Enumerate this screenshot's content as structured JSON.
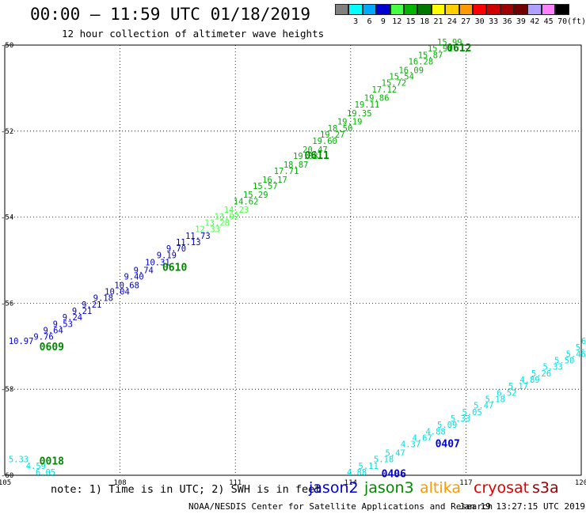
{
  "header": {
    "title": "00:00 – 11:59 UTC 01/18/2019",
    "subtitle": "12 hour collection of altimeter wave heights"
  },
  "legend": {
    "unit": "(ft)",
    "bins": [
      {
        "label": "",
        "color": "#808080"
      },
      {
        "label": "3",
        "color": "#00ffff"
      },
      {
        "label": "6",
        "color": "#00a8ff"
      },
      {
        "label": "9",
        "color": "#0000d0"
      },
      {
        "label": "12",
        "color": "#44ff44"
      },
      {
        "label": "15",
        "color": "#00b400"
      },
      {
        "label": "18",
        "color": "#007800"
      },
      {
        "label": "21",
        "color": "#ffff00"
      },
      {
        "label": "24",
        "color": "#ffd000"
      },
      {
        "label": "27",
        "color": "#ff9900"
      },
      {
        "label": "30",
        "color": "#ff0000"
      },
      {
        "label": "33",
        "color": "#d00000"
      },
      {
        "label": "36",
        "color": "#a00000"
      },
      {
        "label": "39",
        "color": "#700000"
      },
      {
        "label": "42",
        "color": "#b0a0ff"
      },
      {
        "label": "45",
        "color": "#ff80ff"
      },
      {
        "label": "70",
        "color": "#000000"
      }
    ]
  },
  "footer": {
    "note": "note: 1) Time is in UTC; 2) SWH is in feet",
    "missions": [
      {
        "label": "jason2",
        "color": "#0000cc"
      },
      {
        "label": "jason3",
        "color": "#008800"
      },
      {
        "label": "altika",
        "color": "#ff9900"
      },
      {
        "label": "cryosat",
        "color": "#dd0000"
      },
      {
        "label": "s3a",
        "color": "#990000"
      }
    ],
    "credit": "NOAA/NESDIS Center for Satellite Applications and Research",
    "timestamp": "Jan 19 13:27:15 UTC 2019"
  },
  "chart_data": {
    "type": "scatter",
    "xlim": [
      105,
      120
    ],
    "ylim": [
      -60,
      -50
    ],
    "xticks": [
      "105",
      "108",
      "111",
      "114",
      "117",
      "120"
    ],
    "yticks": [
      "-50",
      "-52",
      "-54",
      "-56",
      "-58",
      "-60"
    ],
    "grid": true,
    "series": [
      {
        "color": "#0000cc",
        "points": [
          {
            "x": 105.1,
            "y": -56.95,
            "label": "10.97"
          },
          {
            "x": 105.75,
            "y": -56.85,
            "label": "9.76"
          },
          {
            "x": 106.0,
            "y": -56.7,
            "label": "9.64"
          },
          {
            "x": 106.25,
            "y": -56.55,
            "label": "9.53"
          },
          {
            "x": 106.5,
            "y": -56.4,
            "label": "9.24"
          },
          {
            "x": 106.75,
            "y": -56.25,
            "label": "9.21"
          },
          {
            "x": 107.0,
            "y": -56.1,
            "label": "9.21"
          },
          {
            "x": 107.3,
            "y": -55.95,
            "label": "9.18"
          },
          {
            "x": 107.6,
            "y": -55.8,
            "label": "10.04"
          },
          {
            "x": 107.85,
            "y": -55.65,
            "label": "10.68"
          },
          {
            "x": 108.1,
            "y": -55.45,
            "label": "9.40"
          },
          {
            "x": 108.35,
            "y": -55.3,
            "label": "9.74"
          },
          {
            "x": 108.65,
            "y": -55.12,
            "label": "10.31"
          },
          {
            "x": 108.95,
            "y": -54.95,
            "label": "9.19"
          },
          {
            "x": 109.2,
            "y": -54.8,
            "label": "9.70"
          },
          {
            "x": 109.45,
            "y": -54.65,
            "label": "11.13"
          },
          {
            "x": 109.7,
            "y": -54.5,
            "label": "11.73"
          }
        ]
      },
      {
        "color": "#44ff44",
        "points": [
          {
            "x": 109.95,
            "y": -54.35,
            "label": "12.33"
          },
          {
            "x": 110.2,
            "y": -54.2,
            "label": "13.28"
          },
          {
            "x": 110.45,
            "y": -54.05,
            "label": "13.92"
          },
          {
            "x": 110.7,
            "y": -53.9,
            "label": "14.23"
          }
        ]
      },
      {
        "color": "#00b400",
        "points": [
          {
            "x": 110.95,
            "y": -53.7,
            "label": "14.62"
          },
          {
            "x": 111.2,
            "y": -53.55,
            "label": "15.29"
          },
          {
            "x": 111.45,
            "y": -53.35,
            "label": "15.57"
          },
          {
            "x": 111.7,
            "y": -53.2,
            "label": "16.17"
          },
          {
            "x": 112.0,
            "y": -53.0,
            "label": "17.71"
          },
          {
            "x": 112.25,
            "y": -52.85,
            "label": "18.87"
          },
          {
            "x": 112.5,
            "y": -52.65,
            "label": "19.08"
          },
          {
            "x": 112.75,
            "y": -52.5,
            "label": "20.47"
          },
          {
            "x": 113.0,
            "y": -52.3,
            "label": "19.60"
          },
          {
            "x": 113.2,
            "y": -52.15,
            "label": "19.27"
          },
          {
            "x": 113.4,
            "y": -52.0,
            "label": "18.50"
          },
          {
            "x": 113.65,
            "y": -51.85,
            "label": "19.19"
          },
          {
            "x": 113.9,
            "y": -51.65,
            "label": "19.35"
          },
          {
            "x": 114.1,
            "y": -51.45,
            "label": "19.11"
          },
          {
            "x": 114.35,
            "y": -51.3,
            "label": "19.86"
          },
          {
            "x": 114.55,
            "y": -51.1,
            "label": "17.12"
          },
          {
            "x": 114.8,
            "y": -50.95,
            "label": "15.72"
          },
          {
            "x": 115.0,
            "y": -50.8,
            "label": "15.54"
          },
          {
            "x": 115.25,
            "y": -50.65,
            "label": "16.09"
          },
          {
            "x": 115.5,
            "y": -50.45,
            "label": "16.28"
          },
          {
            "x": 115.75,
            "y": -50.3,
            "label": "15.87"
          },
          {
            "x": 116.0,
            "y": -50.15,
            "label": "15.91"
          },
          {
            "x": 116.25,
            "y": -50.0,
            "label": "15.99"
          }
        ]
      },
      {
        "color": "#00e0e0",
        "points": [
          {
            "x": 105.1,
            "y": -59.7,
            "label": "5.33"
          },
          {
            "x": 105.55,
            "y": -59.85,
            "label": "4.59"
          },
          {
            "x": 105.8,
            "y": -60.0,
            "label": "6.05"
          }
        ]
      },
      {
        "color": "#00e0e0",
        "points": [
          {
            "x": 113.9,
            "y": -60.0,
            "label": "4.88"
          },
          {
            "x": 114.2,
            "y": -59.85,
            "label": "5.11"
          },
          {
            "x": 114.6,
            "y": -59.7,
            "label": "5.18"
          },
          {
            "x": 114.9,
            "y": -59.55,
            "label": "5.47"
          },
          {
            "x": 115.3,
            "y": -59.35,
            "label": "4.37"
          },
          {
            "x": 115.6,
            "y": -59.2,
            "label": "4.67"
          },
          {
            "x": 115.95,
            "y": -59.05,
            "label": "4.88"
          },
          {
            "x": 116.25,
            "y": -58.9,
            "label": "5.09"
          },
          {
            "x": 116.6,
            "y": -58.75,
            "label": "5.33"
          },
          {
            "x": 116.9,
            "y": -58.6,
            "label": "5.05"
          },
          {
            "x": 117.2,
            "y": -58.45,
            "label": "5.47"
          },
          {
            "x": 117.5,
            "y": -58.3,
            "label": "5.18"
          },
          {
            "x": 117.8,
            "y": -58.15,
            "label": "6.52"
          },
          {
            "x": 118.1,
            "y": -58.0,
            "label": "5.17"
          },
          {
            "x": 118.4,
            "y": -57.85,
            "label": "4.89"
          },
          {
            "x": 118.7,
            "y": -57.7,
            "label": "5.26"
          },
          {
            "x": 119.0,
            "y": -57.55,
            "label": "5.33"
          },
          {
            "x": 119.3,
            "y": -57.4,
            "label": "5.50"
          },
          {
            "x": 119.6,
            "y": -57.25,
            "label": "5.46"
          },
          {
            "x": 119.85,
            "y": -57.1,
            "label": "5.91"
          },
          {
            "x": 120.0,
            "y": -56.95,
            "label": "6"
          }
        ]
      }
    ],
    "pass_labels": [
      {
        "text": "0609",
        "x": 105.9,
        "y": -57.1,
        "color": "#008800"
      },
      {
        "text": "0610",
        "x": 109.1,
        "y": -55.25,
        "color": "#008800"
      },
      {
        "text": "0611",
        "x": 112.8,
        "y": -52.65,
        "color": "#008800"
      },
      {
        "text": "0612",
        "x": 116.5,
        "y": -50.15,
        "color": "#008800"
      },
      {
        "text": "0018",
        "x": 105.9,
        "y": -59.75,
        "color": "#008800"
      },
      {
        "text": "0407",
        "x": 116.2,
        "y": -59.35,
        "color": "#0000cc"
      },
      {
        "text": "0406",
        "x": 114.8,
        "y": -60.05,
        "color": "#0000cc"
      }
    ]
  }
}
